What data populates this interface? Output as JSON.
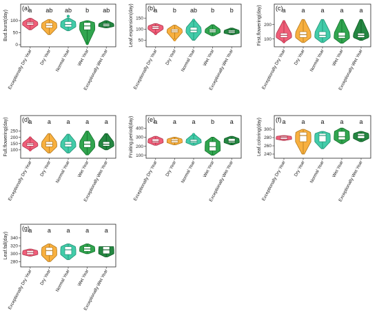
{
  "palette": [
    "#ee4c6a",
    "#f7a72a",
    "#2ec7a0",
    "#1b9b3c",
    "#0d7a2d"
  ],
  "categories": [
    "Exceptionally Dry Year",
    "Dry Year",
    "Normal Year",
    "Wet Year",
    "Exceptionally Wet Year"
  ],
  "chart_data": [
    {
      "type": "violin",
      "panel": "(a)",
      "ylabel": "Bud.burst(day)",
      "ylim": [
        0,
        120
      ],
      "yticks": [
        0,
        50,
        100
      ],
      "categories": [
        "Exceptionally Dry Year",
        "Dry Year",
        "Normal Year",
        "Wet Year",
        "Exceptionally Wet Year"
      ],
      "significance": [
        "a",
        "ab",
        "ab",
        "b",
        "ab"
      ],
      "series": [
        {
          "name": "Exceptionally Dry Year",
          "min": 62,
          "q1": 82,
          "median": 90,
          "q3": 95,
          "max": 110,
          "outliers": []
        },
        {
          "name": "Dry Year",
          "min": 42,
          "q1": 70,
          "median": 80,
          "q3": 90,
          "max": 105,
          "outliers": []
        },
        {
          "name": "Normal Year",
          "min": 58,
          "q1": 74,
          "median": 84,
          "q3": 96,
          "max": 110,
          "outliers": [
            118
          ]
        },
        {
          "name": "Wet Year",
          "min": 5,
          "q1": 62,
          "median": 78,
          "q3": 92,
          "max": 100,
          "outliers": [
            5
          ]
        },
        {
          "name": "Exceptionally Wet Year",
          "min": 70,
          "q1": 76,
          "median": 82,
          "q3": 88,
          "max": 100,
          "outliers": []
        }
      ]
    },
    {
      "type": "violin",
      "panel": "(b)",
      "ylabel": "Leaf.expansion(day)",
      "ylim": [
        30,
        160
      ],
      "yticks": [
        50,
        100,
        150
      ],
      "categories": [
        "Exceptionally Dry Year",
        "Dry Year",
        "Normal Year",
        "Wet Year",
        "Exceptionally Wet Year"
      ],
      "significance": [
        "a",
        "b",
        "ab",
        "b",
        "b"
      ],
      "series": [
        {
          "name": "Exceptionally Dry Year",
          "min": 80,
          "q1": 100,
          "median": 108,
          "q3": 115,
          "max": 125,
          "outliers": [
            80
          ]
        },
        {
          "name": "Dry Year",
          "min": 52,
          "q1": 85,
          "median": 92,
          "q3": 100,
          "max": 118,
          "outliers": [
            52
          ]
        },
        {
          "name": "Normal Year",
          "min": 50,
          "q1": 85,
          "median": 95,
          "q3": 108,
          "max": 140,
          "outliers": [
            140
          ]
        },
        {
          "name": "Wet Year",
          "min": 70,
          "q1": 85,
          "median": 92,
          "q3": 100,
          "max": 120,
          "outliers": []
        },
        {
          "name": "Exceptionally Wet Year",
          "min": 75,
          "q1": 82,
          "median": 88,
          "q3": 95,
          "max": 105,
          "outliers": []
        }
      ]
    },
    {
      "type": "violin",
      "panel": "(c)",
      "ylabel": "First.flowering(day)",
      "ylim": [
        60,
        260
      ],
      "yticks": [
        100,
        200
      ],
      "categories": [
        "Exceptionally Dry Year",
        "Dry Year",
        "Normal Year",
        "Wet Year",
        "Exceptionally Wet Year"
      ],
      "significance": [
        "a",
        "a",
        "a",
        "a",
        "a"
      ],
      "series": [
        {
          "name": "Exceptionally Dry Year",
          "min": 80,
          "q1": 110,
          "median": 125,
          "q3": 140,
          "max": 220,
          "outliers": [
            80,
            220
          ]
        },
        {
          "name": "Dry Year",
          "min": 75,
          "q1": 110,
          "median": 130,
          "q3": 150,
          "max": 235,
          "outliers": []
        },
        {
          "name": "Normal Year",
          "min": 75,
          "q1": 110,
          "median": 125,
          "q3": 150,
          "max": 235,
          "outliers": []
        },
        {
          "name": "Wet Year",
          "min": 70,
          "q1": 105,
          "median": 120,
          "q3": 145,
          "max": 235,
          "outliers": []
        },
        {
          "name": "Exceptionally Wet Year",
          "min": 90,
          "q1": 110,
          "median": 125,
          "q3": 140,
          "max": 235,
          "outliers": []
        }
      ]
    },
    {
      "type": "violin",
      "panel": "(d)",
      "ylabel": "Full.flowering(day)",
      "ylim": [
        50,
        280
      ],
      "yticks": [
        100,
        150,
        200,
        250
      ],
      "categories": [
        "Exceptionally Dry Year",
        "Dry Year",
        "Normal Year",
        "Wet Year",
        "Exceptionally Wet Year"
      ],
      "significance": [
        "a",
        "a",
        "a",
        "a",
        "a"
      ],
      "series": [
        {
          "name": "Exceptionally Dry Year",
          "min": 100,
          "q1": 130,
          "median": 145,
          "q3": 155,
          "max": 195,
          "outliers": [
            100,
            195
          ]
        },
        {
          "name": "Dry Year",
          "min": 75,
          "q1": 125,
          "median": 145,
          "q3": 165,
          "max": 230,
          "outliers": []
        },
        {
          "name": "Normal Year",
          "min": 75,
          "q1": 125,
          "median": 145,
          "q3": 165,
          "max": 225,
          "outliers": []
        },
        {
          "name": "Wet Year",
          "min": 60,
          "q1": 120,
          "median": 145,
          "q3": 170,
          "max": 250,
          "outliers": []
        },
        {
          "name": "Exceptionally Wet Year",
          "min": 100,
          "q1": 130,
          "median": 145,
          "q3": 165,
          "max": 230,
          "outliers": []
        }
      ]
    },
    {
      "type": "violin",
      "panel": "(e)",
      "ylabel": "Fruiting.period(day)",
      "ylim": [
        90,
        410
      ],
      "yticks": [
        100,
        200,
        300,
        400
      ],
      "categories": [
        "Exceptionally Dry Year",
        "Dry Year",
        "Normal Year",
        "Wet Year",
        "Exceptionally Wet Year"
      ],
      "significance": [
        "a",
        "a",
        "a",
        "b",
        "a"
      ],
      "series": [
        {
          "name": "Exceptionally Dry Year",
          "min": 210,
          "q1": 240,
          "median": 255,
          "q3": 280,
          "max": 310,
          "outliers": []
        },
        {
          "name": "Dry Year",
          "min": 215,
          "q1": 240,
          "median": 260,
          "q3": 280,
          "max": 300,
          "outliers": []
        },
        {
          "name": "Normal Year",
          "min": 210,
          "q1": 240,
          "median": 255,
          "q3": 275,
          "max": 330,
          "outliers": [
            330
          ]
        },
        {
          "name": "Wet Year",
          "min": 100,
          "q1": 150,
          "median": 195,
          "q3": 250,
          "max": 300,
          "outliers": []
        },
        {
          "name": "Exceptionally Wet Year",
          "min": 215,
          "q1": 240,
          "median": 255,
          "q3": 285,
          "max": 310,
          "outliers": []
        }
      ]
    },
    {
      "type": "violin",
      "panel": "(f)",
      "ylabel": "Leaf.coloring(day)",
      "ylim": [
        235,
        305
      ],
      "yticks": [
        240,
        260,
        280,
        300
      ],
      "categories": [
        "Exceptionally Dry Year",
        "Dry Year",
        "Normal Year",
        "Wet Year",
        "Exceptionally Wet Year"
      ],
      "significance": [
        "a",
        "a",
        "a",
        "a",
        "a"
      ],
      "series": [
        {
          "name": "Exceptionally Dry Year",
          "min": 273,
          "q1": 276,
          "median": 280,
          "q3": 283,
          "max": 285,
          "outliers": []
        },
        {
          "name": "Dry Year",
          "min": 240,
          "q1": 270,
          "median": 285,
          "q3": 293,
          "max": 300,
          "outliers": []
        },
        {
          "name": "Normal Year",
          "min": 253,
          "q1": 270,
          "median": 285,
          "q3": 290,
          "max": 295,
          "outliers": []
        },
        {
          "name": "Wet Year",
          "min": 265,
          "q1": 275,
          "median": 282,
          "q3": 295,
          "max": 303,
          "outliers": []
        },
        {
          "name": "Exceptionally Wet Year",
          "min": 270,
          "q1": 278,
          "median": 285,
          "q3": 290,
          "max": 295,
          "outliers": []
        }
      ]
    },
    {
      "type": "violin",
      "panel": "(g)",
      "ylabel": "Leaf.fall(day)",
      "ylim": [
        272,
        345
      ],
      "yticks": [
        280,
        300,
        320,
        340
      ],
      "categories": [
        "Exceptionally Dry Year",
        "Dry Year",
        "Normal Year",
        "Wet Year",
        "Exceptionally Wet Year"
      ],
      "significance": [
        "a",
        "a",
        "a",
        "a",
        "a"
      ],
      "series": [
        {
          "name": "Exceptionally Dry Year",
          "min": 294,
          "q1": 298,
          "median": 303,
          "q3": 308,
          "max": 312,
          "outliers": []
        },
        {
          "name": "Dry Year",
          "min": 280,
          "q1": 296,
          "median": 308,
          "q3": 316,
          "max": 325,
          "outliers": []
        },
        {
          "name": "Normal Year",
          "min": 285,
          "q1": 298,
          "median": 310,
          "q3": 318,
          "max": 325,
          "outliers": []
        },
        {
          "name": "Wet Year",
          "min": 300,
          "q1": 306,
          "median": 312,
          "q3": 318,
          "max": 325,
          "outliers": []
        },
        {
          "name": "Exceptionally Wet Year",
          "min": 292,
          "q1": 300,
          "median": 310,
          "q3": 318,
          "max": 318,
          "outliers": []
        }
      ]
    }
  ]
}
